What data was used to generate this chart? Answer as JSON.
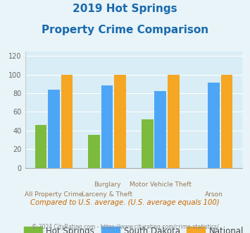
{
  "title_line1": "2019 Hot Springs",
  "title_line2": "Property Crime Comparison",
  "cat_labels_top": [
    "",
    "Burglary",
    "Motor Vehicle Theft",
    ""
  ],
  "cat_labels_bot": [
    "All Property Crime",
    "Larceny & Theft",
    "",
    "Arson"
  ],
  "hot_springs": [
    46,
    35,
    52,
    0
  ],
  "south_dakota": [
    84,
    88,
    82,
    91
  ],
  "national": [
    100,
    100,
    100,
    100
  ],
  "hot_springs_color": "#7cbb3e",
  "south_dakota_color": "#4da6f5",
  "national_color": "#f5a623",
  "title_color": "#1a6aad",
  "background_color": "#e8f4f8",
  "plot_bg_color": "#d8edf5",
  "ylabel_vals": [
    0,
    20,
    40,
    60,
    80,
    100,
    120
  ],
  "ylim": [
    0,
    125
  ],
  "legend_labels": [
    "Hot Springs",
    "South Dakota",
    "National"
  ],
  "footnote1": "Compared to U.S. average. (U.S. average equals 100)",
  "footnote2": "© 2024 CityRating.com - https://www.cityrating.com/crime-statistics/",
  "footnote1_color": "#cc6600",
  "footnote2_color": "#888888"
}
